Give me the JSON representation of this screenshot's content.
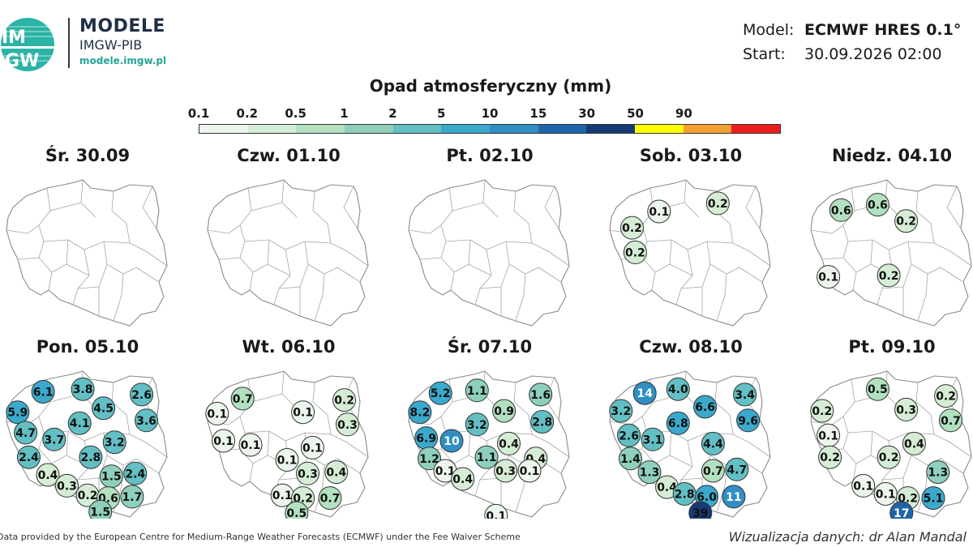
{
  "brand": {
    "logo_text_top": "IM",
    "logo_text_bottom": "GW",
    "title": "MODELE",
    "subtitle": "IMGW-PIB",
    "url": "modele.imgw.pl"
  },
  "meta": {
    "model_label": "Model:",
    "model_value": "ECMWF HRES 0.1°",
    "start_label": "Start:",
    "start_value": "30.09.2026 02:00"
  },
  "legend": {
    "title": "Opad atmosferyczny (mm)",
    "ticks": [
      "0.1",
      "0.2",
      "0.5",
      "1",
      "2",
      "5",
      "10",
      "15",
      "30",
      "50",
      "90"
    ],
    "colors": [
      "#edf6ec",
      "#d5edd4",
      "#b3e0bf",
      "#8ed0bd",
      "#62bfc3",
      "#3ba9cc",
      "#2f8fc4",
      "#1f66a8",
      "#163a73",
      "#ffff00",
      "#f5a030",
      "#ee1c1c"
    ]
  },
  "panels": [
    {
      "title": "Śr. 30.09",
      "points": []
    },
    {
      "title": "Czw. 01.10",
      "points": []
    },
    {
      "title": "Pt. 02.10",
      "points": []
    },
    {
      "title": "Sob. 03.10",
      "points": [
        {
          "v": "0.1",
          "x": 0.3,
          "y": 0.22
        },
        {
          "v": "0.2",
          "x": 0.67,
          "y": 0.16
        },
        {
          "v": "0.2",
          "x": 0.13,
          "y": 0.34
        },
        {
          "v": "0.2",
          "x": 0.15,
          "y": 0.52
        }
      ]
    },
    {
      "title": "Niedz. 04.10",
      "points": [
        {
          "v": "0.6",
          "x": 0.18,
          "y": 0.21
        },
        {
          "v": "0.6",
          "x": 0.41,
          "y": 0.17
        },
        {
          "v": "0.2",
          "x": 0.59,
          "y": 0.29
        },
        {
          "v": "0.1",
          "x": 0.1,
          "y": 0.7
        },
        {
          "v": "0.2",
          "x": 0.48,
          "y": 0.69
        }
      ]
    },
    {
      "title": "Pon. 05.10",
      "points": [
        {
          "v": "6.1",
          "x": 0.22,
          "y": 0.14
        },
        {
          "v": "3.8",
          "x": 0.47,
          "y": 0.12
        },
        {
          "v": "2.6",
          "x": 0.84,
          "y": 0.16
        },
        {
          "v": "5.9",
          "x": 0.06,
          "y": 0.29
        },
        {
          "v": "4.5",
          "x": 0.6,
          "y": 0.26
        },
        {
          "v": "4.1",
          "x": 0.45,
          "y": 0.37
        },
        {
          "v": "3.6",
          "x": 0.87,
          "y": 0.35
        },
        {
          "v": "4.7",
          "x": 0.11,
          "y": 0.44
        },
        {
          "v": "3.7",
          "x": 0.29,
          "y": 0.49
        },
        {
          "v": "3.2",
          "x": 0.67,
          "y": 0.51
        },
        {
          "v": "2.4",
          "x": 0.13,
          "y": 0.62
        },
        {
          "v": "2.8",
          "x": 0.52,
          "y": 0.62
        },
        {
          "v": "0.4",
          "x": 0.25,
          "y": 0.75
        },
        {
          "v": "1.5",
          "x": 0.65,
          "y": 0.76
        },
        {
          "v": "2.4",
          "x": 0.8,
          "y": 0.74
        },
        {
          "v": "0.3",
          "x": 0.37,
          "y": 0.83
        },
        {
          "v": "0.2",
          "x": 0.5,
          "y": 0.9
        },
        {
          "v": "0.6",
          "x": 0.63,
          "y": 0.92
        },
        {
          "v": "1.7",
          "x": 0.78,
          "y": 0.91
        },
        {
          "v": "1.5",
          "x": 0.58,
          "y": 1.02
        }
      ]
    },
    {
      "title": "Wt. 06.10",
      "points": [
        {
          "v": "0.7",
          "x": 0.21,
          "y": 0.19
        },
        {
          "v": "0.2",
          "x": 0.85,
          "y": 0.2
        },
        {
          "v": "0.1",
          "x": 0.05,
          "y": 0.3
        },
        {
          "v": "0.1",
          "x": 0.59,
          "y": 0.29
        },
        {
          "v": "0.3",
          "x": 0.87,
          "y": 0.38
        },
        {
          "v": "0.1",
          "x": 0.09,
          "y": 0.5
        },
        {
          "v": "0.1",
          "x": 0.26,
          "y": 0.53
        },
        {
          "v": "0.1",
          "x": 0.65,
          "y": 0.55
        },
        {
          "v": "0.1",
          "x": 0.49,
          "y": 0.64
        },
        {
          "v": "0.3",
          "x": 0.62,
          "y": 0.74
        },
        {
          "v": "0.4",
          "x": 0.8,
          "y": 0.73
        },
        {
          "v": "0.1",
          "x": 0.46,
          "y": 0.9
        },
        {
          "v": "0.2",
          "x": 0.59,
          "y": 0.92
        },
        {
          "v": "0.7",
          "x": 0.76,
          "y": 0.92
        },
        {
          "v": "0.5",
          "x": 0.55,
          "y": 1.03
        }
      ]
    },
    {
      "title": "Śr. 07.10",
      "points": [
        {
          "v": "5.2",
          "x": 0.19,
          "y": 0.15
        },
        {
          "v": "1.1",
          "x": 0.42,
          "y": 0.13
        },
        {
          "v": "1.6",
          "x": 0.82,
          "y": 0.16
        },
        {
          "v": "8.2",
          "x": 0.06,
          "y": 0.29
        },
        {
          "v": "0.9",
          "x": 0.59,
          "y": 0.28
        },
        {
          "v": "2.8",
          "x": 0.83,
          "y": 0.36
        },
        {
          "v": "3.2",
          "x": 0.42,
          "y": 0.38
        },
        {
          "v": "6.9",
          "x": 0.1,
          "y": 0.48
        },
        {
          "v": "10",
          "x": 0.26,
          "y": 0.5
        },
        {
          "v": "0.4",
          "x": 0.62,
          "y": 0.52
        },
        {
          "v": "1.2",
          "x": 0.12,
          "y": 0.63
        },
        {
          "v": "1.1",
          "x": 0.48,
          "y": 0.62
        },
        {
          "v": "0.4",
          "x": 0.79,
          "y": 0.63
        },
        {
          "v": "0.1",
          "x": 0.22,
          "y": 0.72
        },
        {
          "v": "0.4",
          "x": 0.33,
          "y": 0.78
        },
        {
          "v": "0.3",
          "x": 0.6,
          "y": 0.72
        },
        {
          "v": "0.1",
          "x": 0.75,
          "y": 0.72
        },
        {
          "v": "0.1",
          "x": 0.54,
          "y": 1.05
        }
      ]
    },
    {
      "title": "Czw. 08.10",
      "points": [
        {
          "v": "14",
          "x": 0.21,
          "y": 0.15
        },
        {
          "v": "4.0",
          "x": 0.42,
          "y": 0.12
        },
        {
          "v": "3.4",
          "x": 0.84,
          "y": 0.16
        },
        {
          "v": "3.2",
          "x": 0.06,
          "y": 0.28
        },
        {
          "v": "6.6",
          "x": 0.59,
          "y": 0.25
        },
        {
          "v": "6.8",
          "x": 0.42,
          "y": 0.37
        },
        {
          "v": "9.6",
          "x": 0.86,
          "y": 0.35
        },
        {
          "v": "2.6",
          "x": 0.11,
          "y": 0.46
        },
        {
          "v": "3.1",
          "x": 0.26,
          "y": 0.49
        },
        {
          "v": "4.4",
          "x": 0.64,
          "y": 0.52
        },
        {
          "v": "1.4",
          "x": 0.12,
          "y": 0.63
        },
        {
          "v": "1.3",
          "x": 0.24,
          "y": 0.73
        },
        {
          "v": "0.7",
          "x": 0.64,
          "y": 0.72
        },
        {
          "v": "4.7",
          "x": 0.79,
          "y": 0.71
        },
        {
          "v": "0.4",
          "x": 0.35,
          "y": 0.84
        },
        {
          "v": "2.8",
          "x": 0.46,
          "y": 0.89
        },
        {
          "v": "6.0",
          "x": 0.6,
          "y": 0.91
        },
        {
          "v": "11",
          "x": 0.77,
          "y": 0.91
        },
        {
          "v": "39",
          "x": 0.56,
          "y": 1.03
        }
      ]
    },
    {
      "title": "Pt. 09.10",
      "points": [
        {
          "v": "0.5",
          "x": 0.41,
          "y": 0.12
        },
        {
          "v": "0.2",
          "x": 0.84,
          "y": 0.17
        },
        {
          "v": "0.2",
          "x": 0.06,
          "y": 0.28
        },
        {
          "v": "0.3",
          "x": 0.59,
          "y": 0.27
        },
        {
          "v": "0.7",
          "x": 0.87,
          "y": 0.35
        },
        {
          "v": "0.1",
          "x": 0.1,
          "y": 0.46
        },
        {
          "v": "0.4",
          "x": 0.64,
          "y": 0.52
        },
        {
          "v": "0.2",
          "x": 0.11,
          "y": 0.62
        },
        {
          "v": "0.2",
          "x": 0.48,
          "y": 0.62
        },
        {
          "v": "1.3",
          "x": 0.79,
          "y": 0.73
        },
        {
          "v": "0.1",
          "x": 0.32,
          "y": 0.83
        },
        {
          "v": "0.1",
          "x": 0.46,
          "y": 0.89
        },
        {
          "v": "0.2",
          "x": 0.6,
          "y": 0.92
        },
        {
          "v": "5.1",
          "x": 0.76,
          "y": 0.92
        },
        {
          "v": "17",
          "x": 0.56,
          "y": 1.03
        }
      ]
    }
  ],
  "footer": {
    "source": "Data provided by the European Centre for Medium-Range Weather Forecasts (ECMWF) under the Fee Waiver Scheme",
    "credit": "Wizualizacja danych: dr Alan Mandal"
  }
}
